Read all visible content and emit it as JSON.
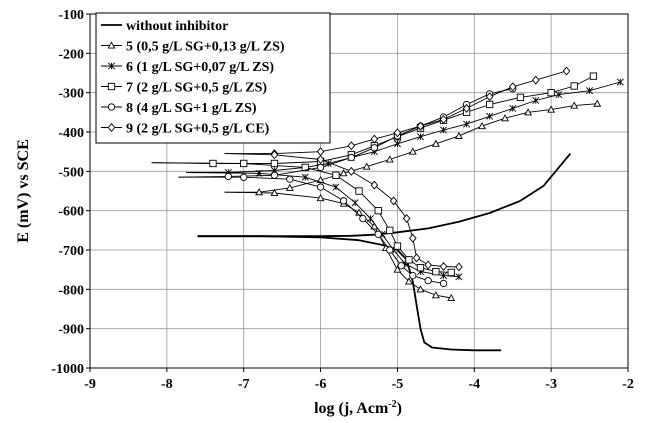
{
  "chart_data": {
    "type": "line",
    "title": "",
    "xlabel": "log (j, Acm",
    "xlabel_sup": "-2",
    "xlabel_close": ")",
    "ylabel": "E (mV) vs SCE",
    "xlim": [
      -9,
      -2
    ],
    "ylim": [
      -1000,
      -100
    ],
    "x_ticks": [
      -9,
      -8,
      -7,
      -6,
      -5,
      -4,
      -3,
      -2
    ],
    "y_ticks": [
      -100,
      -200,
      -300,
      -400,
      -500,
      -600,
      -700,
      -800,
      -900,
      -1000
    ],
    "grid": true,
    "legend_position": "top-left",
    "series": [
      {
        "name": "without inhibitor",
        "marker": "none",
        "points": [
          [
            -7.6,
            -665
          ],
          [
            -6.8,
            -665
          ],
          [
            -6.0,
            -665
          ],
          [
            -5.6,
            -664
          ],
          [
            -5.3,
            -661
          ],
          [
            -5.0,
            -655
          ],
          [
            -4.6,
            -645
          ],
          [
            -4.2,
            -628
          ],
          [
            -3.8,
            -606
          ],
          [
            -3.4,
            -575
          ],
          [
            -3.1,
            -537
          ],
          [
            -2.75,
            -455
          ],
          null,
          [
            -7.6,
            -665
          ],
          [
            -6.8,
            -665
          ],
          [
            -6.0,
            -668
          ],
          [
            -5.5,
            -675
          ],
          [
            -5.2,
            -687
          ],
          [
            -5.0,
            -700
          ],
          [
            -4.88,
            -725
          ],
          [
            -4.8,
            -780
          ],
          [
            -4.75,
            -840
          ],
          [
            -4.7,
            -900
          ],
          [
            -4.65,
            -935
          ],
          [
            -4.55,
            -948
          ],
          [
            -4.3,
            -953
          ],
          [
            -4.0,
            -955
          ],
          [
            -3.65,
            -955
          ]
        ]
      },
      {
        "name": "5 (0,5 g/L SG+0,13 g/L ZS)",
        "marker": "triangle",
        "points": [
          [
            -7.25,
            -553
          ],
          [
            -6.8,
            -553
          ],
          [
            -6.4,
            -542
          ],
          [
            -6.0,
            -522
          ],
          [
            -5.7,
            -505
          ],
          [
            -5.4,
            -488
          ],
          [
            -5.1,
            -470
          ],
          [
            -4.8,
            -450
          ],
          [
            -4.5,
            -430
          ],
          [
            -4.2,
            -410
          ],
          [
            -3.9,
            -385
          ],
          [
            -3.6,
            -365
          ],
          [
            -3.3,
            -350
          ],
          [
            -3.0,
            -343
          ],
          [
            -2.7,
            -333
          ],
          [
            -2.4,
            -328
          ],
          null,
          [
            -7.25,
            -553
          ],
          [
            -6.6,
            -555
          ],
          [
            -6.0,
            -568
          ],
          [
            -5.7,
            -582
          ],
          [
            -5.5,
            -605
          ],
          [
            -5.3,
            -640
          ],
          [
            -5.15,
            -695
          ],
          [
            -5.0,
            -750
          ],
          [
            -4.85,
            -780
          ],
          [
            -4.7,
            -800
          ],
          [
            -4.5,
            -815
          ],
          [
            -4.3,
            -822
          ]
        ]
      },
      {
        "name": "6 (1 g/L SG+0,07 g/L ZS)",
        "marker": "star",
        "points": [
          [
            -7.75,
            -503
          ],
          [
            -7.2,
            -503
          ],
          [
            -6.6,
            -498
          ],
          [
            -6.2,
            -490
          ],
          [
            -5.9,
            -480
          ],
          [
            -5.6,
            -465
          ],
          [
            -5.3,
            -450
          ],
          [
            -5.0,
            -430
          ],
          [
            -4.7,
            -412
          ],
          [
            -4.4,
            -395
          ],
          [
            -4.1,
            -380
          ],
          [
            -3.8,
            -360
          ],
          [
            -3.5,
            -340
          ],
          [
            -3.2,
            -320
          ],
          [
            -2.9,
            -305
          ],
          [
            -2.5,
            -295
          ],
          [
            -2.1,
            -273
          ],
          null,
          [
            -7.75,
            -503
          ],
          [
            -6.8,
            -505
          ],
          [
            -6.2,
            -515
          ],
          [
            -5.8,
            -540
          ],
          [
            -5.55,
            -580
          ],
          [
            -5.35,
            -620
          ],
          [
            -5.2,
            -660
          ],
          [
            -5.05,
            -700
          ],
          [
            -4.9,
            -735
          ],
          [
            -4.7,
            -755
          ],
          [
            -4.4,
            -765
          ],
          [
            -4.2,
            -768
          ]
        ]
      },
      {
        "name": "7 (2 g/L SG+0,5 g/L ZS)",
        "marker": "square",
        "points": [
          [
            -8.2,
            -478
          ],
          [
            -7.4,
            -480
          ],
          [
            -6.6,
            -480
          ],
          [
            -6.0,
            -475
          ],
          [
            -5.6,
            -458
          ],
          [
            -5.3,
            -435
          ],
          [
            -5.0,
            -412
          ],
          [
            -4.7,
            -390
          ],
          [
            -4.4,
            -370
          ],
          [
            -4.1,
            -350
          ],
          [
            -3.8,
            -330
          ],
          [
            -3.4,
            -312
          ],
          [
            -3.0,
            -300
          ],
          [
            -2.7,
            -283
          ],
          [
            -2.45,
            -258
          ],
          null,
          [
            -8.2,
            -478
          ],
          [
            -7.0,
            -480
          ],
          [
            -6.2,
            -490
          ],
          [
            -5.8,
            -510
          ],
          [
            -5.5,
            -550
          ],
          [
            -5.25,
            -600
          ],
          [
            -5.1,
            -650
          ],
          [
            -5.0,
            -690
          ],
          [
            -4.85,
            -725
          ],
          [
            -4.7,
            -745
          ],
          [
            -4.5,
            -755
          ],
          [
            -4.3,
            -757
          ]
        ]
      },
      {
        "name": "8 (4 g/L SG+1 g/L ZS)",
        "marker": "circle",
        "points": [
          [
            -7.85,
            -515
          ],
          [
            -7.2,
            -513
          ],
          [
            -6.6,
            -510
          ],
          [
            -6.0,
            -490
          ],
          [
            -5.6,
            -465
          ],
          [
            -5.3,
            -440
          ],
          [
            -5.0,
            -410
          ],
          [
            -4.7,
            -385
          ],
          [
            -4.4,
            -362
          ],
          [
            -4.1,
            -330
          ],
          [
            -3.8,
            -303
          ],
          [
            -3.5,
            -290
          ],
          null,
          [
            -7.85,
            -515
          ],
          [
            -7.0,
            -515
          ],
          [
            -6.4,
            -520
          ],
          [
            -6.0,
            -540
          ],
          [
            -5.7,
            -575
          ],
          [
            -5.45,
            -620
          ],
          [
            -5.25,
            -660
          ],
          [
            -5.1,
            -700
          ],
          [
            -4.95,
            -740
          ],
          [
            -4.8,
            -765
          ],
          [
            -4.6,
            -778
          ],
          [
            -4.4,
            -785
          ]
        ]
      },
      {
        "name": "9 (2 g/L SG+0,5 g/L CE)",
        "marker": "diamond",
        "points": [
          [
            -7.25,
            -455
          ],
          [
            -6.6,
            -455
          ],
          [
            -6.0,
            -450
          ],
          [
            -5.6,
            -435
          ],
          [
            -5.3,
            -418
          ],
          [
            -5.0,
            -402
          ],
          [
            -4.7,
            -385
          ],
          [
            -4.4,
            -368
          ],
          [
            -4.1,
            -340
          ],
          [
            -3.8,
            -310
          ],
          [
            -3.5,
            -285
          ],
          [
            -3.2,
            -268
          ],
          [
            -2.8,
            -245
          ],
          null,
          [
            -7.25,
            -455
          ],
          [
            -6.6,
            -458
          ],
          [
            -6.0,
            -470
          ],
          [
            -5.6,
            -500
          ],
          [
            -5.3,
            -535
          ],
          [
            -5.05,
            -575
          ],
          [
            -4.88,
            -620
          ],
          [
            -4.8,
            -670
          ],
          [
            -4.75,
            -720
          ],
          [
            -4.6,
            -738
          ],
          [
            -4.4,
            -742
          ],
          [
            -4.2,
            -743
          ]
        ]
      }
    ]
  }
}
